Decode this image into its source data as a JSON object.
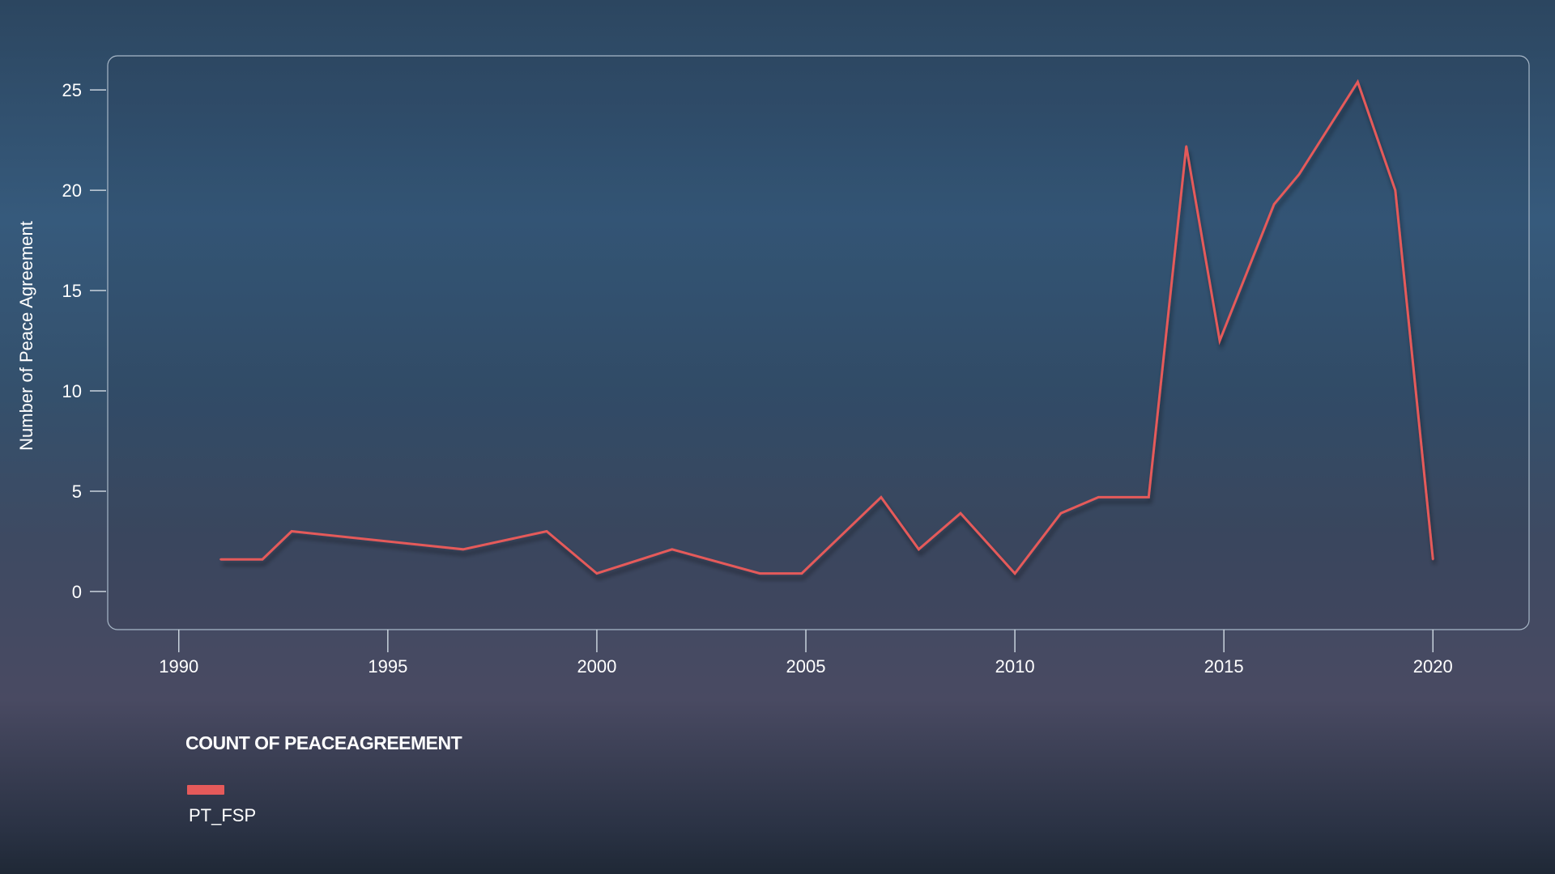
{
  "colors": {
    "line": "#e55a5a",
    "frame": "#a8b8c8",
    "axis": "#c8d2dc",
    "text": "#ffffff"
  },
  "legend": {
    "title": "COUNT OF PEACEAGREEMENT",
    "items": [
      {
        "label": "PT_FSP",
        "color": "#e55a5a"
      }
    ]
  },
  "chart_data": {
    "type": "line",
    "title": "",
    "xlabel": "",
    "ylabel": "Number of Peace Agreement",
    "xlim": [
      1988.3,
      2022.3
    ],
    "ylim": [
      -1.9,
      26.7
    ],
    "xticks": [
      1990,
      1995,
      2000,
      2005,
      2010,
      2015,
      2020
    ],
    "yticks": [
      0,
      5,
      10,
      15,
      20,
      25
    ],
    "grid": false,
    "legend_position": "bottom-left",
    "series": [
      {
        "name": "PT_FSP",
        "color": "#e55a5a",
        "x": [
          1991,
          1992,
          1992.7,
          1996.8,
          1998.8,
          2000,
          2001.8,
          2003.9,
          2004.9,
          2006.8,
          2007.7,
          2008.7,
          2010,
          2011.1,
          2012,
          2013.2,
          2014.1,
          2014.9,
          2016.2,
          2016.8,
          2018.2,
          2019.1,
          2020
        ],
        "y": [
          1.6,
          1.6,
          3.0,
          2.1,
          3.0,
          0.9,
          2.1,
          0.9,
          0.9,
          4.7,
          2.1,
          3.9,
          0.9,
          3.9,
          4.7,
          4.7,
          22.2,
          12.5,
          19.3,
          20.8,
          25.4,
          20.0,
          1.6
        ]
      }
    ]
  }
}
